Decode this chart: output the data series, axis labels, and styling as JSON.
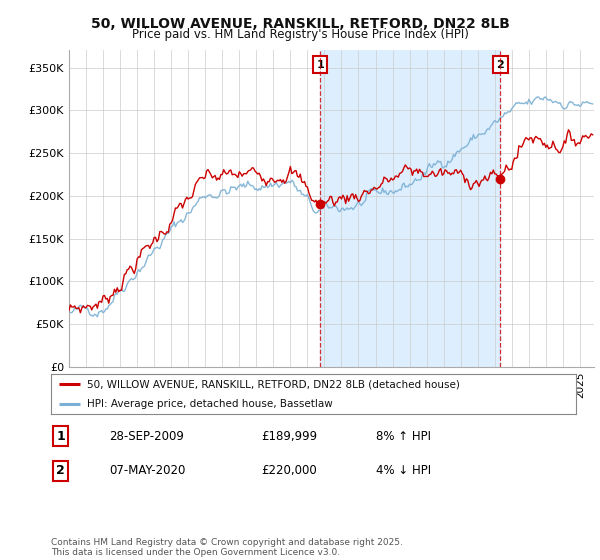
{
  "title_line1": "50, WILLOW AVENUE, RANSKILL, RETFORD, DN22 8LB",
  "title_line2": "Price paid vs. HM Land Registry's House Price Index (HPI)",
  "background_color": "#ffffff",
  "plot_bg_color": "#ffffff",
  "grid_color": "#cccccc",
  "red_line_color": "#cc0000",
  "blue_line_color": "#7ab0d4",
  "shade_color": "#ddeeff",
  "annotation1": "1",
  "annotation2": "2",
  "legend_label1": "50, WILLOW AVENUE, RANSKILL, RETFORD, DN22 8LB (detached house)",
  "legend_label2": "HPI: Average price, detached house, Bassetlaw",
  "table_row1": [
    "1",
    "28-SEP-2009",
    "£189,999",
    "8% ↑ HPI"
  ],
  "table_row2": [
    "2",
    "07-MAY-2020",
    "£220,000",
    "4% ↓ HPI"
  ],
  "footer": "Contains HM Land Registry data © Crown copyright and database right 2025.\nThis data is licensed under the Open Government Licence v3.0.",
  "ytick_labels": [
    "£0",
    "£50K",
    "£100K",
    "£150K",
    "£200K",
    "£250K",
    "£300K",
    "£350K"
  ],
  "ytick_values": [
    0,
    50000,
    100000,
    150000,
    200000,
    250000,
    300000,
    350000
  ],
  "ylim": [
    0,
    370000
  ],
  "xlim_start": 1995.0,
  "xlim_end": 2025.83
}
